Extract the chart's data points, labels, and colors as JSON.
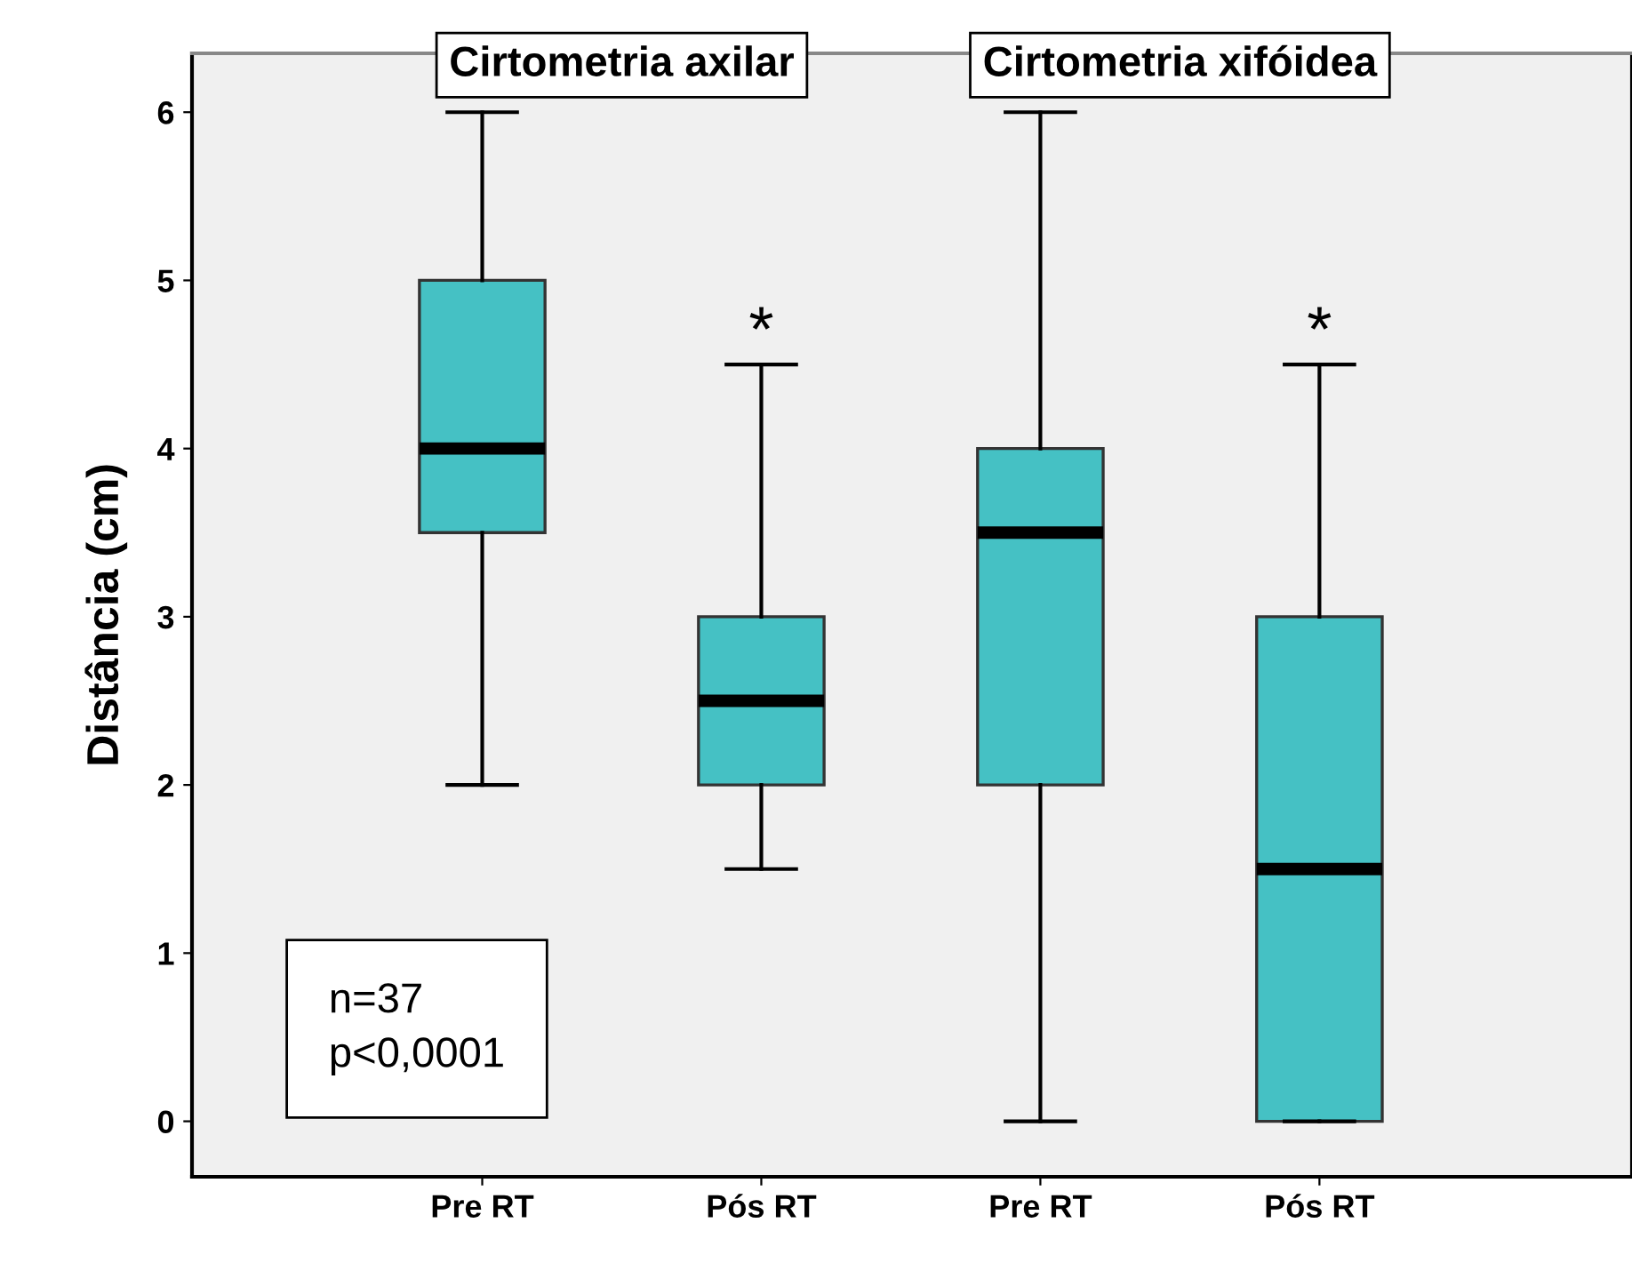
{
  "chart_data": {
    "type": "box",
    "ylabel": "Distância (cm)",
    "categories": [
      "Pre RT",
      "Pós RT",
      "Pre RT",
      "Pós RT"
    ],
    "boxes": [
      {
        "low": 2,
        "q1": 3.5,
        "median": 4,
        "q3": 5,
        "high": 6
      },
      {
        "low": 1.5,
        "q1": 2,
        "median": 2.5,
        "q3": 3,
        "high": 4.5
      },
      {
        "low": 0,
        "q1": 2,
        "median": 3.5,
        "q3": 4,
        "high": 6
      },
      {
        "low": 0,
        "q1": 0,
        "median": 1.5,
        "q3": 3,
        "high": 4.5
      }
    ],
    "color": "#45c1c4",
    "ylim": [
      -0.33,
      6.35
    ],
    "yticks": [
      0,
      1,
      2,
      3,
      4,
      5,
      6
    ],
    "grid": false,
    "legend": false,
    "annotations": [
      "Cirtometria axilar",
      "Cirtometria xifóidea",
      "*",
      "*",
      "n=37\np<0,0001"
    ]
  }
}
